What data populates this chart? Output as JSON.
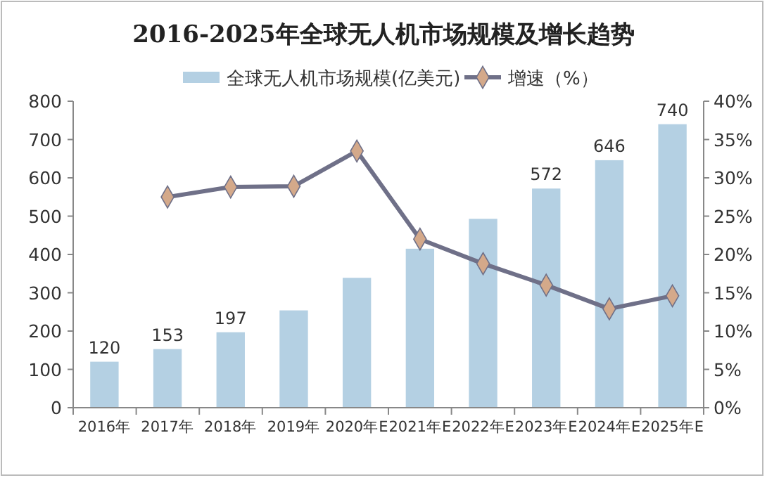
{
  "chart_data": {
    "type": "bar",
    "title": "2016-2025年全球无人机市场规模及增长趋势",
    "categories": [
      "2016年",
      "2017年",
      "2018年",
      "2019年",
      "2020年E",
      "2021年E",
      "2022年E",
      "2023年E",
      "2024年E",
      "2025年E"
    ],
    "series": [
      {
        "name": "全球无人机市场规模(亿美元)",
        "color": "#b4d0e3",
        "values": [
          120,
          153,
          197,
          254,
          339,
          415,
          493,
          572,
          646,
          740
        ],
        "value_labels": [
          "120",
          "153",
          "197",
          null,
          null,
          null,
          null,
          "572",
          "646",
          "740"
        ]
      },
      {
        "name": "增速（%）",
        "type": "line",
        "axis": "y2",
        "color": "#6f7088",
        "marker": "diamond",
        "values": [
          null,
          27.5,
          28.8,
          28.9,
          33.5,
          22,
          18.8,
          16,
          12.9,
          14.6
        ]
      }
    ],
    "ylim": [
      0,
      800
    ],
    "yticks": [
      0,
      100,
      200,
      300,
      400,
      500,
      600,
      700,
      800
    ],
    "y2lim": [
      0,
      40
    ],
    "y2ticks": [
      {
        "value": 0,
        "label": "0%"
      },
      {
        "value": 5,
        "label": "5%"
      },
      {
        "value": 10,
        "label": "10%"
      },
      {
        "value": 15,
        "label": "15%"
      },
      {
        "value": 20,
        "label": "20%"
      },
      {
        "value": 25,
        "label": "25%"
      },
      {
        "value": 30,
        "label": "30%"
      },
      {
        "value": 35,
        "label": "35%"
      },
      {
        "value": 40,
        "label": "40%"
      }
    ],
    "legend": "top",
    "grid": false
  }
}
